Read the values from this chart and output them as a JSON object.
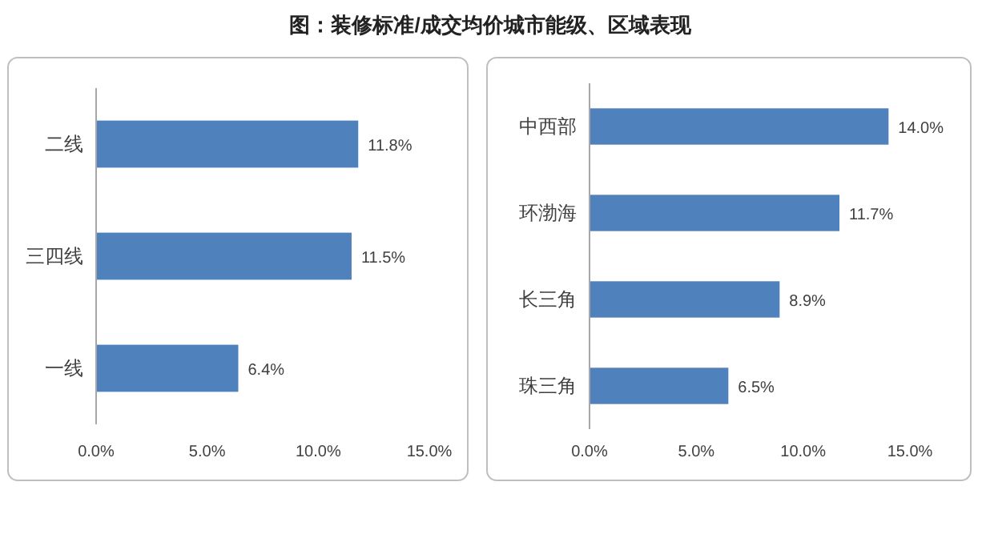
{
  "chart_data": [
    {
      "type": "bar",
      "orientation": "horizontal",
      "title": "图：装修标准/成交均价城市能级、区域表现",
      "categories": [
        "二线",
        "三四线",
        "一线"
      ],
      "series": [
        {
          "color": "#4f81bd",
          "values": [
            11.8,
            11.5,
            6.4
          ],
          "value_labels": [
            "11.8%",
            "11.5%",
            "6.4%"
          ]
        }
      ],
      "xlim": [
        0,
        15
      ],
      "xticks": [
        {
          "value": 0,
          "label": "0.0%"
        },
        {
          "value": 5,
          "label": "5.0%"
        },
        {
          "value": 10,
          "label": "10.0%"
        },
        {
          "value": 15,
          "label": "15.0%"
        }
      ],
      "grid": false
    },
    {
      "type": "bar",
      "orientation": "horizontal",
      "categories": [
        "中西部",
        "环渤海",
        "长三角",
        "珠三角"
      ],
      "series": [
        {
          "color": "#4f81bd",
          "values": [
            14.0,
            11.7,
            8.9,
            6.5
          ],
          "value_labels": [
            "14.0%",
            "11.7%",
            "8.9%",
            "6.5%"
          ]
        }
      ],
      "xlim": [
        0,
        15
      ],
      "xticks": [
        {
          "value": 0,
          "label": "0.0%"
        },
        {
          "value": 5,
          "label": "5.0%"
        },
        {
          "value": 10,
          "label": "10.0%"
        },
        {
          "value": 15,
          "label": "15.0%"
        }
      ],
      "grid": false
    }
  ]
}
